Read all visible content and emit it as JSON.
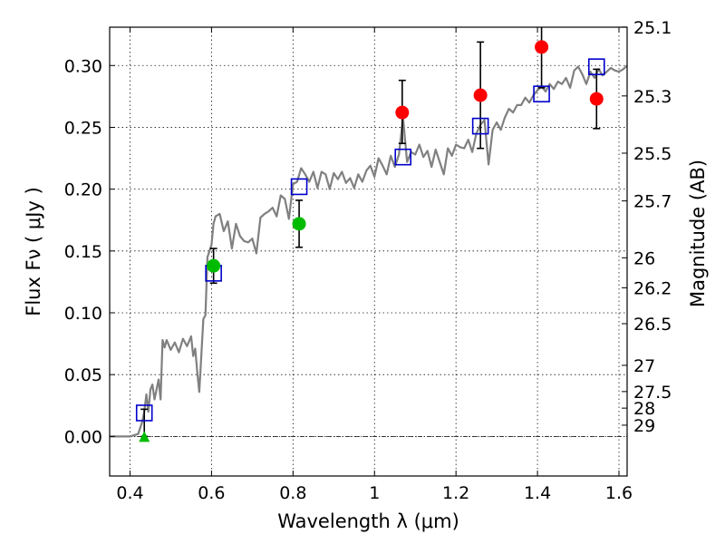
{
  "chart_data": {
    "type": "scatter",
    "xlabel": "Wavelength  λ (μm)",
    "ylabel": "Flux  Fν  ( μJy )",
    "y2label": "Magnitude (AB)",
    "xlim": [
      0.35,
      1.62
    ],
    "ylim": [
      -0.032,
      0.331
    ],
    "xticks": [
      0.4,
      0.6,
      0.8,
      1.0,
      1.2,
      1.4,
      1.6
    ],
    "xtick_labels": [
      "0.4",
      "0.6",
      "0.8",
      "1",
      "1.2",
      "1.4",
      "1.6"
    ],
    "yticks": [
      0.0,
      0.05,
      0.1,
      0.15,
      0.2,
      0.25,
      0.3
    ],
    "ytick_labels": [
      "0.00",
      "0.05",
      "0.10",
      "0.15",
      "0.20",
      "0.25",
      "0.30"
    ],
    "right_axis_ticks": [
      {
        "label": "25.1",
        "flux": 0.3311
      },
      {
        "label": "25.3",
        "flux": 0.2754
      },
      {
        "label": "25.5",
        "flux": 0.2291
      },
      {
        "label": "25.7",
        "flux": 0.1905
      },
      {
        "label": "26",
        "flux": 0.1445
      },
      {
        "label": "26.2",
        "flux": 0.1202
      },
      {
        "label": "26.5",
        "flux": 0.0912
      },
      {
        "label": "27",
        "flux": 0.0575
      },
      {
        "label": "27.5",
        "flux": 0.0363
      },
      {
        "label": "28",
        "flux": 0.0229
      },
      {
        "label": "29",
        "flux": 0.0091
      }
    ],
    "grid": true,
    "zero_line": true,
    "colors": {
      "spectrum": "#808080",
      "model_squares": "#0000cc",
      "red_points": "#ff0000",
      "green_points": "#00bb00",
      "errorbar": "#000000"
    },
    "series": [
      {
        "kind": "line",
        "x": [
          0.35,
          0.4,
          0.42,
          0.43,
          0.435,
          0.44,
          0.445,
          0.45,
          0.455,
          0.46,
          0.47,
          0.475,
          0.48,
          0.485,
          0.49,
          0.5,
          0.51,
          0.52,
          0.53,
          0.54,
          0.55,
          0.555,
          0.56,
          0.565,
          0.57,
          0.58,
          0.585,
          0.59,
          0.6,
          0.605,
          0.61,
          0.62,
          0.63,
          0.64,
          0.65,
          0.66,
          0.67,
          0.68,
          0.69,
          0.7,
          0.71,
          0.72,
          0.73,
          0.74,
          0.75,
          0.76,
          0.77,
          0.78,
          0.79,
          0.8,
          0.81,
          0.82,
          0.83,
          0.84,
          0.85,
          0.86,
          0.87,
          0.88,
          0.89,
          0.9,
          0.91,
          0.92,
          0.93,
          0.94,
          0.95,
          0.96,
          0.97,
          0.98,
          0.99,
          1.0,
          1.01,
          1.02,
          1.03,
          1.04,
          1.05,
          1.06,
          1.07,
          1.08,
          1.09,
          1.1,
          1.11,
          1.12,
          1.13,
          1.14,
          1.15,
          1.16,
          1.17,
          1.18,
          1.19,
          1.2,
          1.21,
          1.22,
          1.23,
          1.24,
          1.25,
          1.26,
          1.27,
          1.28,
          1.29,
          1.3,
          1.31,
          1.32,
          1.33,
          1.34,
          1.35,
          1.36,
          1.37,
          1.38,
          1.39,
          1.4,
          1.41,
          1.42,
          1.43,
          1.44,
          1.45,
          1.46,
          1.47,
          1.48,
          1.49,
          1.5,
          1.51,
          1.52,
          1.53,
          1.54,
          1.55,
          1.56,
          1.57,
          1.58,
          1.59,
          1.6,
          1.61,
          1.62
        ],
        "y": [
          0.0,
          0.0,
          0.002,
          0.012,
          0.02,
          0.034,
          0.02,
          0.038,
          0.042,
          0.03,
          0.046,
          0.03,
          0.078,
          0.072,
          0.078,
          0.07,
          0.076,
          0.068,
          0.079,
          0.073,
          0.081,
          0.065,
          0.071,
          0.052,
          0.036,
          0.095,
          0.098,
          0.145,
          0.155,
          0.172,
          0.178,
          0.18,
          0.166,
          0.174,
          0.152,
          0.172,
          0.162,
          0.158,
          0.157,
          0.16,
          0.148,
          0.177,
          0.18,
          0.182,
          0.185,
          0.178,
          0.195,
          0.192,
          0.176,
          0.204,
          0.206,
          0.217,
          0.212,
          0.206,
          0.214,
          0.201,
          0.214,
          0.212,
          0.2,
          0.213,
          0.208,
          0.214,
          0.205,
          0.209,
          0.201,
          0.212,
          0.206,
          0.215,
          0.219,
          0.21,
          0.225,
          0.219,
          0.212,
          0.227,
          0.218,
          0.228,
          0.258,
          0.222,
          0.23,
          0.228,
          0.236,
          0.226,
          0.231,
          0.218,
          0.232,
          0.222,
          0.212,
          0.233,
          0.227,
          0.236,
          0.234,
          0.233,
          0.24,
          0.23,
          0.245,
          0.252,
          0.256,
          0.22,
          0.248,
          0.254,
          0.248,
          0.258,
          0.265,
          0.262,
          0.268,
          0.268,
          0.274,
          0.27,
          0.276,
          0.28,
          0.283,
          0.279,
          0.285,
          0.281,
          0.287,
          0.285,
          0.29,
          0.282,
          0.296,
          0.299,
          0.293,
          0.285,
          0.295,
          0.29,
          0.297,
          0.292,
          0.295,
          0.298,
          0.296,
          0.295,
          0.297,
          0.3
        ]
      },
      {
        "kind": "squares",
        "x": [
          0.435,
          0.605,
          0.815,
          1.07,
          1.26,
          1.41,
          1.545
        ],
        "y": [
          0.019,
          0.132,
          0.202,
          0.226,
          0.251,
          0.277,
          0.299
        ]
      },
      {
        "kind": "red_points",
        "x": [
          1.068,
          1.26,
          1.41,
          1.545
        ],
        "y": [
          0.262,
          0.276,
          0.315,
          0.273
        ],
        "yerr_low": [
          0.237,
          0.233,
          0.282,
          0.249
        ],
        "yerr_high": [
          0.288,
          0.319,
          0.331,
          0.297
        ]
      },
      {
        "kind": "green_points",
        "x": [
          0.605,
          0.815
        ],
        "y": [
          0.138,
          0.172
        ],
        "yerr_low": [
          0.124,
          0.153
        ],
        "yerr_high": [
          0.152,
          0.191
        ]
      },
      {
        "kind": "upper_limit_triangle",
        "x": [
          0.435
        ],
        "y": [
          0.0
        ],
        "yerr_high": [
          0.022
        ]
      }
    ]
  }
}
